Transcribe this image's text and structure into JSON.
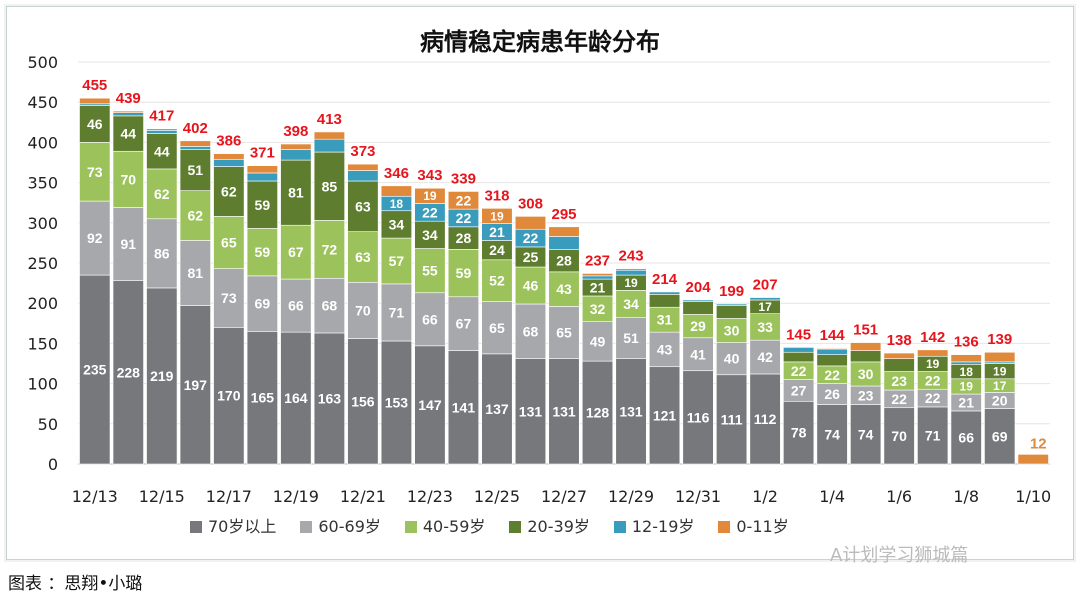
{
  "chart_data": {
    "type": "bar",
    "stacked": true,
    "title": "病情稳定病患年龄分布",
    "ylim": [
      0,
      500
    ],
    "yticks": [
      0,
      50,
      100,
      150,
      200,
      250,
      300,
      350,
      400,
      450,
      500
    ],
    "grid": true,
    "legend_position": "bottom",
    "categories": [
      "12/13",
      "12/14",
      "12/15",
      "12/16",
      "12/17",
      "12/18",
      "12/19",
      "12/20",
      "12/21",
      "12/22",
      "12/23",
      "12/24",
      "12/25",
      "12/26",
      "12/27",
      "12/28",
      "12/29",
      "12/30",
      "12/31",
      "1/1",
      "1/2",
      "1/3",
      "1/4",
      "1/5",
      "1/6",
      "1/7",
      "1/8",
      "1/9",
      "1/10"
    ],
    "xtick_labels": [
      "12/13",
      "12/15",
      "12/17",
      "12/19",
      "12/21",
      "12/23",
      "12/25",
      "12/27",
      "12/29",
      "12/31",
      "1/2",
      "1/4",
      "1/6",
      "1/8",
      "1/10"
    ],
    "series": [
      {
        "name": "70岁以上",
        "color": "#77787b",
        "values": [
          235,
          228,
          219,
          197,
          170,
          165,
          164,
          163,
          156,
          153,
          147,
          141,
          137,
          131,
          131,
          128,
          131,
          121,
          116,
          111,
          112,
          78,
          74,
          74,
          70,
          71,
          66,
          69,
          0
        ]
      },
      {
        "name": "60-69岁",
        "color": "#a7a8ab",
        "values": [
          92,
          91,
          86,
          81,
          73,
          69,
          66,
          68,
          70,
          71,
          66,
          67,
          65,
          68,
          65,
          49,
          51,
          43,
          41,
          40,
          42,
          27,
          26,
          23,
          22,
          22,
          21,
          20,
          0
        ]
      },
      {
        "name": "40-59岁",
        "color": "#9cc35b",
        "values": [
          73,
          70,
          62,
          62,
          65,
          59,
          67,
          72,
          63,
          57,
          55,
          59,
          52,
          46,
          43,
          32,
          34,
          31,
          29,
          30,
          33,
          22,
          22,
          30,
          23,
          22,
          19,
          17,
          0
        ]
      },
      {
        "name": "20-39岁",
        "color": "#5e7d2f",
        "values": [
          46,
          44,
          44,
          51,
          62,
          59,
          81,
          85,
          63,
          34,
          34,
          28,
          24,
          25,
          28,
          21,
          19,
          16,
          16,
          16,
          17,
          12,
          14,
          14,
          16,
          19,
          18,
          19,
          0
        ]
      },
      {
        "name": "12-19岁",
        "color": "#3a9cbc",
        "values": [
          2,
          4,
          4,
          4,
          9,
          10,
          13,
          16,
          13,
          18,
          22,
          22,
          21,
          22,
          16,
          4,
          6,
          3,
          2,
          2,
          3,
          6,
          7,
          0,
          0,
          0,
          3,
          2,
          0
        ]
      },
      {
        "name": "0-11岁",
        "color": "#e0893b",
        "values": [
          7,
          2,
          2,
          7,
          7,
          9,
          7,
          9,
          8,
          13,
          19,
          22,
          19,
          16,
          12,
          3,
          2,
          0,
          0,
          0,
          0,
          0,
          1,
          10,
          7,
          8,
          9,
          12,
          12
        ]
      }
    ],
    "totals": [
      455,
      439,
      417,
      402,
      386,
      371,
      398,
      413,
      373,
      346,
      343,
      339,
      318,
      308,
      295,
      237,
      243,
      214,
      204,
      199,
      207,
      145,
      144,
      151,
      138,
      142,
      136,
      139,
      12
    ],
    "total_color": "#e8141c"
  },
  "caption": "图表 ：思翔•小璐",
  "watermark": "A计划学习狮城篇"
}
